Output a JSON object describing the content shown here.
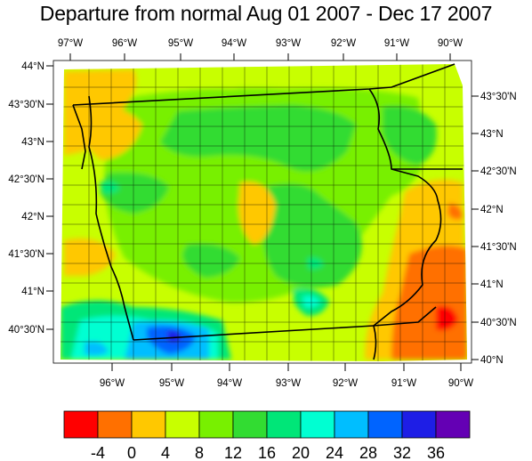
{
  "title": "Departure from normal Aug 01 2007 - Dec 17 2007",
  "top_lon_labels": [
    "97°W",
    "96°W",
    "95°W",
    "94°W",
    "93°W",
    "92°W",
    "91°W",
    "90°W"
  ],
  "bottom_lon_labels": [
    "96°W",
    "95°W",
    "94°W",
    "93°W",
    "92°W",
    "91°W",
    "90°W"
  ],
  "left_lat_labels": [
    "44°N",
    "43°30'N",
    "43°N",
    "42°30'N",
    "42°N",
    "41°30'N",
    "41°N",
    "40°30'N"
  ],
  "right_lat_labels": [
    "43°30'N",
    "43°N",
    "42°30'N",
    "42°N",
    "41°30'N",
    "41°N",
    "40°30'N",
    "40°N"
  ],
  "colorbar": {
    "labels": [
      "-4",
      "0",
      "4",
      "8",
      "12",
      "16",
      "20",
      "24",
      "28",
      "32",
      "36"
    ],
    "colors": [
      "#ff0000",
      "#ff7000",
      "#ffc800",
      "#c8ff00",
      "#78f000",
      "#32dc32",
      "#00e678",
      "#00ffd2",
      "#00beff",
      "#0064ff",
      "#1e1ee6",
      "#6400b4"
    ]
  }
}
